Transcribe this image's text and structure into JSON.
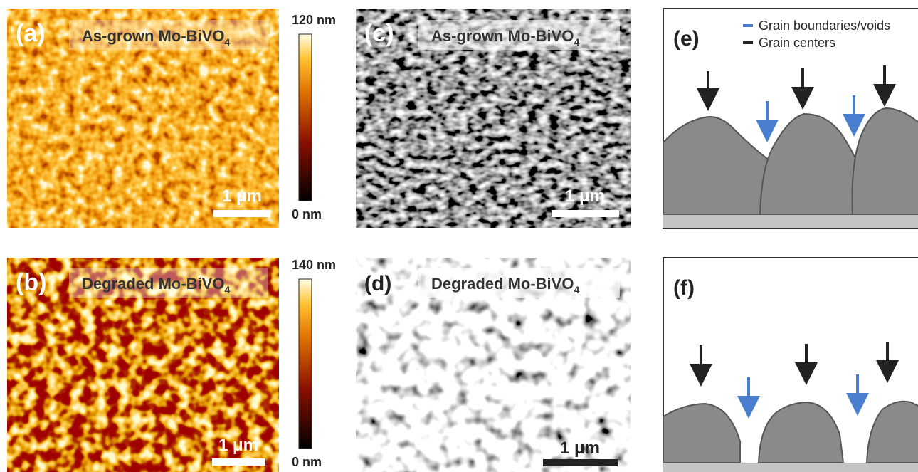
{
  "panels": [
    {
      "label": "(a)",
      "title": "As-grown Mo-BiVO",
      "title_sub": "4",
      "scale_bar": "1 μm",
      "colorbar_max": "120 nm",
      "colorbar_min": "0 nm"
    },
    {
      "label": "(b)",
      "title": "Degraded Mo-BiVO",
      "title_sub": "4",
      "scale_bar": "1 μm",
      "colorbar_max": "140 nm",
      "colorbar_min": "0 nm"
    },
    {
      "label": "(c)",
      "title": "As-grown Mo-BiVO",
      "title_sub": "4",
      "scale_bar": "1 μm"
    },
    {
      "label": "(d)",
      "title": "Degraded Mo-BiVO",
      "title_sub": "4",
      "scale_bar": "1 μm"
    },
    {
      "label": "(e)",
      "legend": [
        "Grain boundaries/voids",
        "Grain centers"
      ]
    },
    {
      "label": "(f)"
    }
  ]
}
